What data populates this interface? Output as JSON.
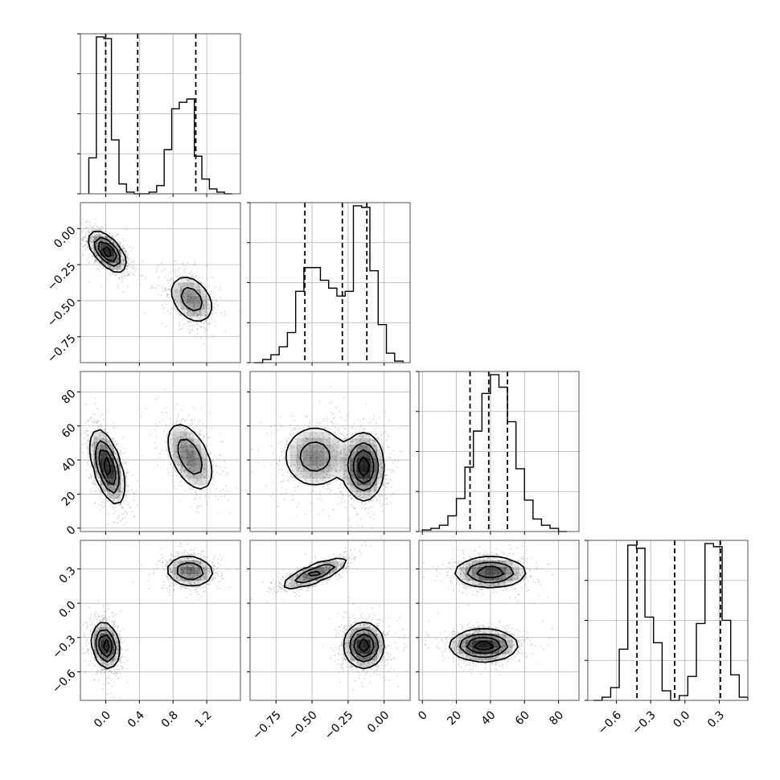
{
  "chart_data": {
    "type": "corner",
    "parameters": [
      {
        "id": "p0",
        "range": [
          -0.3,
          1.6
        ],
        "ticks": [
          0.0,
          0.4,
          0.8,
          1.2
        ],
        "tick_labels": [
          "0.0",
          "0.4",
          "0.8",
          "1.2"
        ],
        "quantiles": [
          0.0,
          0.38,
          1.07
        ]
      },
      {
        "id": "p1",
        "range": [
          -0.93,
          0.18
        ],
        "ticks": [
          -0.75,
          -0.5,
          -0.25,
          0.0
        ],
        "tick_labels": [
          "−0.75",
          "−0.50",
          "−0.25",
          "0.00"
        ],
        "quantiles": [
          -0.55,
          -0.29,
          -0.12
        ]
      },
      {
        "id": "p2",
        "range": [
          -2,
          92
        ],
        "ticks": [
          0,
          20,
          40,
          60,
          80
        ],
        "tick_labels": [
          "0",
          "20",
          "40",
          "60",
          "80"
        ],
        "quantiles": [
          28,
          39,
          50
        ]
      },
      {
        "id": "p3",
        "range": [
          -0.85,
          0.55
        ],
        "ticks": [
          -0.6,
          -0.3,
          0.0,
          0.3
        ],
        "tick_labels": [
          "−0.6",
          "−0.3",
          "0.0",
          "0.3"
        ],
        "quantiles": [
          -0.42,
          -0.09,
          0.31
        ]
      }
    ],
    "histograms": [
      {
        "param": 0,
        "bins": [
          -0.2,
          1.5
        ],
        "counts": [
          0.22,
          0.96,
          0.95,
          0.33,
          0.06,
          0.01,
          0.0,
          0.0,
          0.01,
          0.05,
          0.27,
          0.52,
          0.56,
          0.58,
          0.23,
          0.09,
          0.03,
          0.01,
          0.0
        ]
      },
      {
        "param": 1,
        "bins": [
          -0.9,
          0.13
        ],
        "counts": [
          0.0,
          0.02,
          0.05,
          0.1,
          0.19,
          0.45,
          0.6,
          0.6,
          0.52,
          0.47,
          0.42,
          0.45,
          0.99,
          0.98,
          0.58,
          0.24,
          0.06,
          0.01
        ]
      },
      {
        "param": 2,
        "bins": [
          0,
          85
        ],
        "counts": [
          0.01,
          0.02,
          0.04,
          0.1,
          0.21,
          0.41,
          0.64,
          0.88,
          1.0,
          0.92,
          0.7,
          0.4,
          0.2,
          0.08,
          0.04,
          0.02,
          0.0
        ]
      },
      {
        "param": 3,
        "bins": [
          -0.8,
          0.55
        ],
        "counts": [
          0.0,
          0.02,
          0.08,
          0.32,
          0.97,
          0.95,
          0.52,
          0.36,
          0.06,
          0.0,
          0.03,
          0.15,
          0.48,
          0.98,
          0.96,
          0.5,
          0.16,
          0.02
        ]
      }
    ],
    "pairs": [
      {
        "x": 0,
        "y": 1,
        "modes": [
          {
            "cx": 0.02,
            "cy": -0.16,
            "sx": 0.11,
            "sy": 0.07,
            "rho": -0.6,
            "w": 1.0
          },
          {
            "cx": 1.02,
            "cy": -0.49,
            "sx": 0.14,
            "sy": 0.09,
            "rho": -0.35,
            "w": 0.55
          }
        ]
      },
      {
        "x": 0,
        "y": 2,
        "modes": [
          {
            "cx": 0.02,
            "cy": 36,
            "sx": 0.1,
            "sy": 11,
            "rho": -0.55,
            "w": 1.0
          },
          {
            "cx": 1.0,
            "cy": 42,
            "sx": 0.15,
            "sy": 11,
            "rho": -0.5,
            "w": 0.6
          }
        ]
      },
      {
        "x": 0,
        "y": 3,
        "modes": [
          {
            "cx": 0.0,
            "cy": -0.37,
            "sx": 0.08,
            "sy": 0.1,
            "rho": -0.2,
            "w": 1.0
          },
          {
            "cx": 1.0,
            "cy": 0.28,
            "sx": 0.15,
            "sy": 0.07,
            "rho": -0.1,
            "w": 0.65
          }
        ]
      },
      {
        "x": 1,
        "y": 2,
        "modes": [
          {
            "cx": -0.48,
            "cy": 42,
            "sx": 0.12,
            "sy": 10,
            "rho": 0.0,
            "w": 0.55
          },
          {
            "cx": -0.14,
            "cy": 36,
            "sx": 0.07,
            "sy": 10,
            "rho": 0.0,
            "w": 1.0
          }
        ]
      },
      {
        "x": 1,
        "y": 3,
        "modes": [
          {
            "cx": -0.48,
            "cy": 0.26,
            "sx": 0.12,
            "sy": 0.07,
            "rho": 0.8,
            "w": 0.75
          },
          {
            "cx": -0.14,
            "cy": -0.37,
            "sx": 0.07,
            "sy": 0.1,
            "rho": 0.0,
            "w": 1.0
          }
        ]
      },
      {
        "x": 2,
        "y": 3,
        "modes": [
          {
            "cx": 40,
            "cy": 0.27,
            "sx": 11,
            "sy": 0.07,
            "rho": 0.0,
            "w": 0.8
          },
          {
            "cx": 36,
            "cy": -0.37,
            "sx": 10,
            "sy": 0.07,
            "rho": 0.0,
            "w": 1.0
          }
        ]
      }
    ],
    "grid": true,
    "contour_levels": 4,
    "colors": {
      "scatter": "#8c8c8c",
      "density": "#000000",
      "lines": "#000000"
    }
  }
}
